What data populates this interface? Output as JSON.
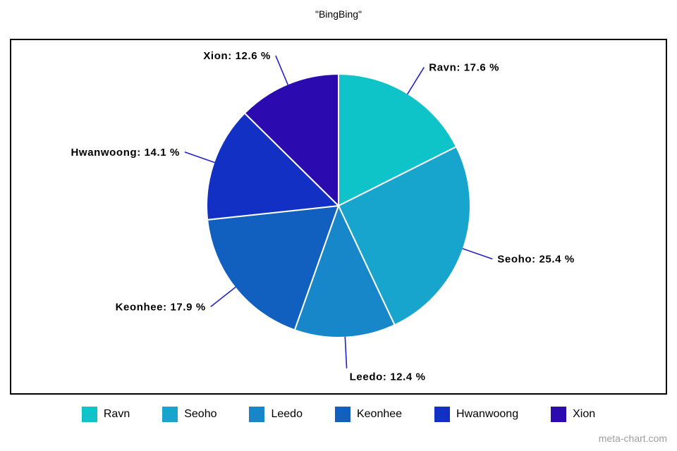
{
  "title": "\"BingBing\"",
  "watermark": "meta-chart.com",
  "chart_data": {
    "type": "pie",
    "title": "\"BingBing\"",
    "categories": [
      "Ravn",
      "Seoho",
      "Leedo",
      "Keonhee",
      "Hwanwoong",
      "Xion"
    ],
    "values": [
      17.6,
      25.4,
      12.4,
      17.9,
      14.1,
      12.6
    ],
    "labels": [
      "Ravn: 17.6 %",
      "Seoho: 25.4 %",
      "Leedo: 12.4 %",
      "Keonhee: 17.9 %",
      "Hwanwoong: 14.1 %",
      "Xion: 12.6 %"
    ],
    "colors": [
      "#0fc4c8",
      "#18a5cd",
      "#1787c9",
      "#1160bf",
      "#1231c4",
      "#2b0bb0"
    ],
    "start_angle_deg": 0,
    "direction": "clockwise",
    "legend_position": "bottom",
    "leader_line_color": "#2222cc"
  },
  "legend": {
    "items": [
      {
        "label": "Ravn",
        "color": "#0fc4c8"
      },
      {
        "label": "Seoho",
        "color": "#18a5cd"
      },
      {
        "label": "Leedo",
        "color": "#1787c9"
      },
      {
        "label": "Keonhee",
        "color": "#1160bf"
      },
      {
        "label": "Hwanwoong",
        "color": "#1231c4"
      },
      {
        "label": "Xion",
        "color": "#2b0bb0"
      }
    ]
  }
}
